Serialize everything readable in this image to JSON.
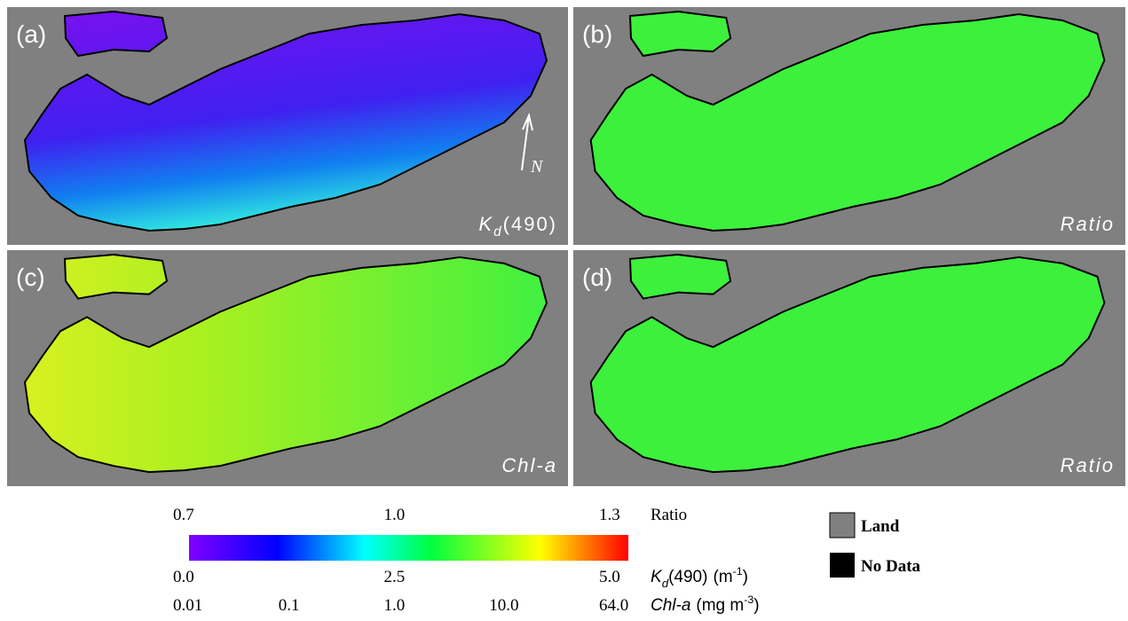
{
  "panels": [
    {
      "letter": "(a)",
      "label": {
        "main": "K",
        "sub": "d",
        "rest": "(490)"
      }
    },
    {
      "letter": "(b)",
      "label": "Ratio"
    },
    {
      "letter": "(c)",
      "label": "Chl-a"
    },
    {
      "letter": "(d)",
      "label": "Ratio"
    }
  ],
  "north_arrow": "N",
  "colorbar": {
    "scales": [
      {
        "ticks": [
          "0.7",
          "1.0",
          "1.3"
        ],
        "name": "Ratio"
      },
      {
        "ticks": [
          "0.0",
          "2.5",
          "5.0"
        ],
        "name": {
          "main": "K",
          "sub": "d",
          "rest": "(490)"
        },
        "unit": {
          "main": "(m",
          "sup": "-1",
          "rest": ")"
        }
      },
      {
        "ticks": [
          "0.01",
          "0.1",
          "1.0",
          "10.0",
          "64.0"
        ],
        "name": {
          "main": "Chl-a"
        },
        "unit": {
          "main": "(mg m",
          "sup": "-3",
          "rest": ")"
        }
      }
    ]
  },
  "legend": [
    {
      "label": "Land"
    },
    {
      "label": "No Data"
    }
  ]
}
